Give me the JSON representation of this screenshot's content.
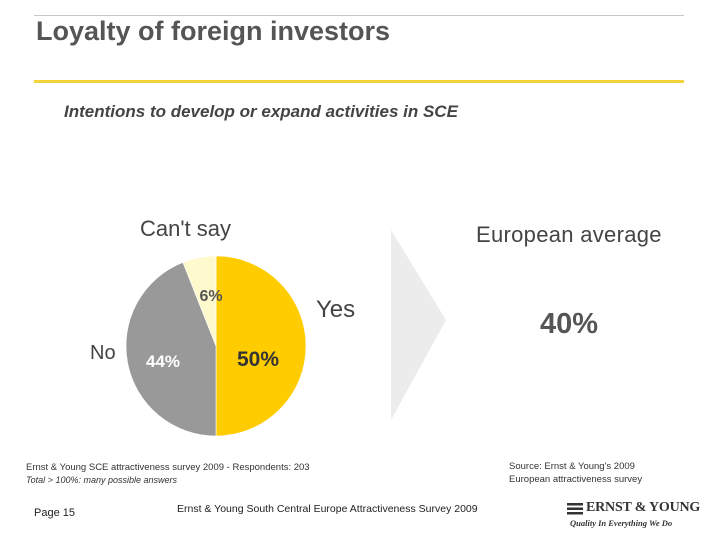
{
  "header": {
    "title": "Loyalty of foreign investors",
    "subtitle": "Intentions to develop or expand activities in SCE"
  },
  "chart_data": {
    "type": "pie",
    "title": "Intentions to develop or expand activities in SCE",
    "slices": [
      {
        "label": "Yes",
        "value": 50,
        "display": "50%",
        "color": "#ffcc00"
      },
      {
        "label": "No",
        "value": 44,
        "display": "44%",
        "color": "#999999"
      },
      {
        "label": "Can't say",
        "value": 6,
        "display": "6%",
        "color": "#fffacd"
      }
    ],
    "comparison": {
      "label": "European average",
      "value": 40,
      "display": "40%"
    },
    "legend": "none"
  },
  "notes": {
    "survey": "Ernst & Young SCE attractiveness survey 2009 - Respondents: 203",
    "total": "Total > 100%: many possible answers",
    "source_line1": "Source: Ernst & Young's 2009",
    "source_line2": "European attractiveness survey"
  },
  "footer": {
    "page": "Page 15",
    "title": "Ernst & Young South Central Europe Attractiveness Survey 2009"
  },
  "logo": {
    "name": "ERNST & YOUNG",
    "tagline": "Quality In Everything We Do"
  },
  "colors": {
    "accent": "#f2d33a",
    "yes": "#ffcc00",
    "no": "#999999",
    "cantsay": "#fffacd",
    "arrow": "#ececec"
  }
}
